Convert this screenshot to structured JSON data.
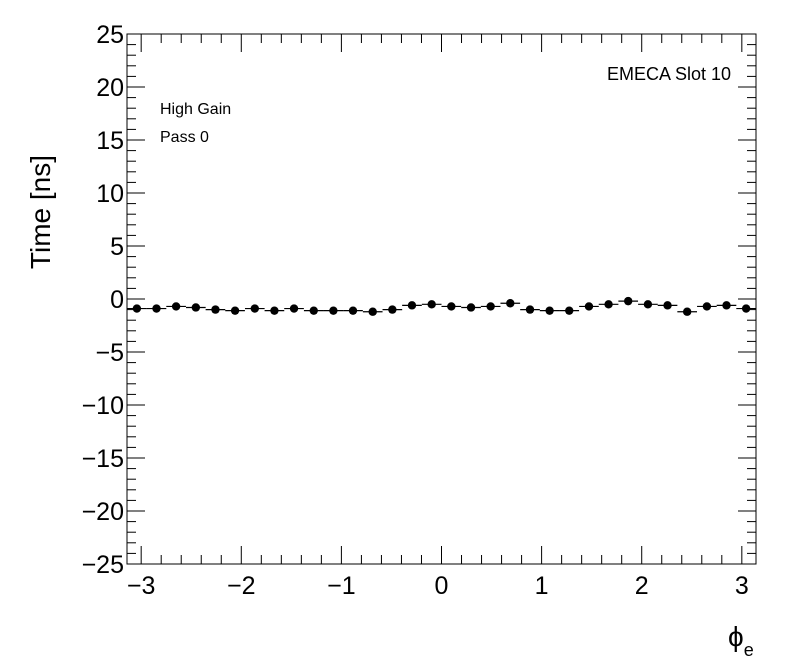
{
  "chart_data": {
    "type": "scatter",
    "title": "",
    "xlabel": "ϕ",
    "xlabel_subscript": "e",
    "ylabel": "Time [ns]",
    "xlim": [
      -3.1416,
      3.1416
    ],
    "ylim": [
      -25,
      25
    ],
    "x_ticks": [
      -3,
      -2,
      -1,
      0,
      1,
      2,
      3
    ],
    "x_tick_labels": [
      "−3",
      "−2",
      "−1",
      "0",
      "1",
      "2",
      "3"
    ],
    "y_ticks": [
      25,
      20,
      15,
      10,
      5,
      0,
      -5,
      -10,
      -15,
      -20,
      -25
    ],
    "y_tick_labels": [
      "25",
      "20",
      "15",
      "10",
      "5",
      "0",
      "−5",
      "−10",
      "−15",
      "−20",
      "−25"
    ],
    "grid": false,
    "annotations": [
      "High Gain",
      "Pass 0",
      "EMECA Slot 10"
    ],
    "marker_color": "#000000",
    "series": [
      {
        "x": [
          -3.043,
          -2.847,
          -2.651,
          -2.454,
          -2.258,
          -2.062,
          -1.865,
          -1.669,
          -1.473,
          -1.276,
          -1.08,
          -0.884,
          -0.687,
          -0.491,
          -0.295,
          -0.098,
          0.098,
          0.295,
          0.491,
          0.687,
          0.884,
          1.08,
          1.276,
          1.473,
          1.669,
          1.865,
          2.062,
          2.258,
          2.454,
          2.651,
          2.847,
          3.043
        ],
        "y": [
          -0.9,
          -0.9,
          -0.7,
          -0.8,
          -1.0,
          -1.1,
          -0.9,
          -1.1,
          -0.9,
          -1.1,
          -1.1,
          -1.1,
          -1.2,
          -1.0,
          -0.6,
          -0.5,
          -0.7,
          -0.8,
          -0.7,
          -0.4,
          -1.0,
          -1.1,
          -1.1,
          -0.7,
          -0.5,
          -0.2,
          -0.5,
          -0.6,
          -1.2,
          -0.7,
          -0.6,
          -0.9
        ]
      }
    ]
  }
}
